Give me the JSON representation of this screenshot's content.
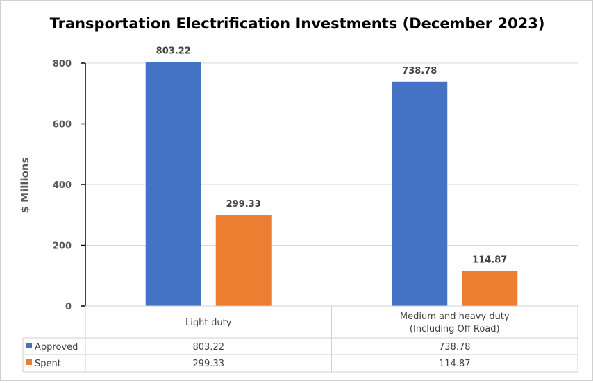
{
  "chart_data": {
    "type": "bar",
    "title": "Transportation Electrification Investments (December 2023)",
    "ylabel": "$ Millions",
    "xlabel": "",
    "ylim": [
      0,
      800
    ],
    "yticks": [
      "0",
      "200",
      "400",
      "600",
      "800"
    ],
    "grid": true,
    "categories": [
      "Light-duty",
      "Medium and heavy duty (Including Off Road)"
    ],
    "category_lines": [
      [
        "Light-duty"
      ],
      [
        "Medium and heavy duty",
        "(Including Off Road)"
      ]
    ],
    "series": [
      {
        "name": "Approved",
        "values": [
          803.22,
          738.78
        ],
        "labels": [
          "803.22",
          "738.78"
        ],
        "color": "#4472C4"
      },
      {
        "name": "Spent",
        "values": [
          299.33,
          114.87
        ],
        "labels": [
          "299.33",
          "114.87"
        ],
        "color": "#ED7D31"
      }
    ],
    "legend": "data-table",
    "data_table": true
  }
}
